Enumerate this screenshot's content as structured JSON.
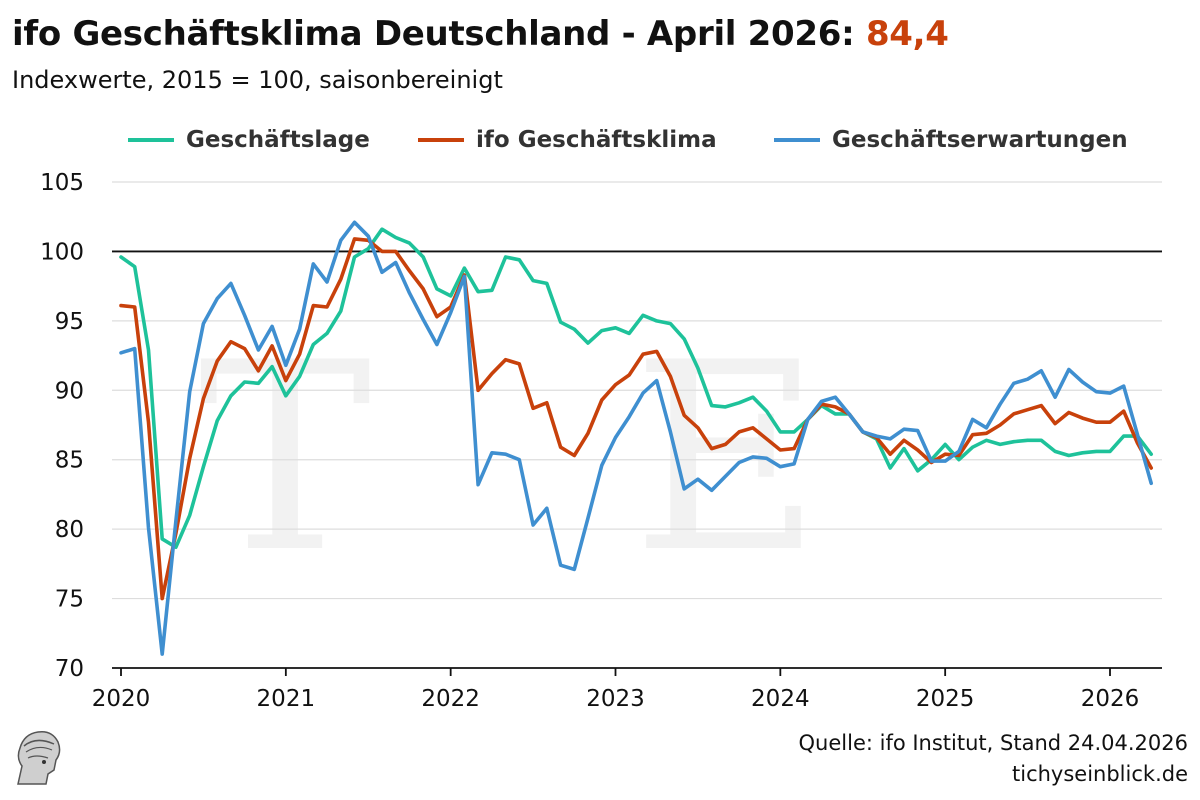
{
  "header": {
    "title": "ifo Geschäftsklima Deutschland - April 2026: ",
    "title_value": "84,4",
    "subtitle": "Indexwerte, 2015 = 100, saisonbereinigt"
  },
  "footer": {
    "source": "Quelle: ifo Institut, Stand 24.04.2026",
    "site": "tichyseinblick.de"
  },
  "watermark": "TE",
  "colors": {
    "accent": "#c8410b",
    "lage": "#1ec29a",
    "klima": "#c8410b",
    "erwartungen": "#3f8fd0",
    "grid": "#dddddd",
    "reference": "#111111"
  },
  "chart_data": {
    "type": "line",
    "title": "ifo Geschäftsklima Deutschland - April 2026: 84,4",
    "subtitle": "Indexwerte, 2015 = 100, saisonbereinigt",
    "xlabel": "",
    "ylabel": "",
    "x_start": "2020-01",
    "x_end": "2026-04",
    "x_ticks": [
      "2020",
      "2021",
      "2022",
      "2023",
      "2024",
      "2025",
      "2026"
    ],
    "ylim": [
      70,
      105
    ],
    "y_ticks": [
      70,
      75,
      80,
      85,
      90,
      95,
      100,
      105
    ],
    "reference_line": 100,
    "grid": true,
    "legend_position": "top",
    "series": [
      {
        "name": "Geschäftslage",
        "color": "#1ec29a",
        "values": [
          99.6,
          98.9,
          92.9,
          79.3,
          78.7,
          81.0,
          84.5,
          87.8,
          89.6,
          90.6,
          90.5,
          91.7,
          89.6,
          91.0,
          93.3,
          94.1,
          95.7,
          99.6,
          100.2,
          101.6,
          101.0,
          100.6,
          99.6,
          97.3,
          96.8,
          98.8,
          97.1,
          97.2,
          99.6,
          99.4,
          97.9,
          97.7,
          94.9,
          94.4,
          93.4,
          94.3,
          94.5,
          94.1,
          95.4,
          95.0,
          94.8,
          93.7,
          91.6,
          88.9,
          88.8,
          89.1,
          89.5,
          88.5,
          87.0,
          87.0,
          87.9,
          88.9,
          88.3,
          88.3,
          87.0,
          86.5,
          84.4,
          85.8,
          84.2,
          85.0,
          86.1,
          85.0,
          85.9,
          86.4,
          86.1,
          86.3,
          86.4,
          86.4,
          85.6,
          85.3,
          85.5,
          85.6,
          85.6,
          86.7,
          86.7,
          85.4
        ]
      },
      {
        "name": "ifo Geschäftsklima",
        "color": "#c8410b",
        "values": [
          96.1,
          96.0,
          87.7,
          75.0,
          79.7,
          85.1,
          89.4,
          92.1,
          93.5,
          93.0,
          91.4,
          93.2,
          90.7,
          92.6,
          96.1,
          96.0,
          98.0,
          100.9,
          100.8,
          100.0,
          100.0,
          98.6,
          97.3,
          95.3,
          96.0,
          98.3,
          90.0,
          91.2,
          92.2,
          91.9,
          88.7,
          89.1,
          85.9,
          85.3,
          86.9,
          89.3,
          90.4,
          91.1,
          92.6,
          92.8,
          91.0,
          88.2,
          87.3,
          85.8,
          86.1,
          87.0,
          87.3,
          86.5,
          85.7,
          85.8,
          87.9,
          89.0,
          88.8,
          88.3,
          87.0,
          86.6,
          85.4,
          86.4,
          85.7,
          84.8,
          85.4,
          85.3,
          86.8,
          86.9,
          87.5,
          88.3,
          88.6,
          88.9,
          87.6,
          88.4,
          88.0,
          87.7,
          87.7,
          88.5,
          86.2,
          84.4
        ]
      },
      {
        "name": "Geschäftserwartungen",
        "color": "#3f8fd0",
        "values": [
          92.7,
          93.0,
          80.1,
          71.0,
          80.6,
          89.9,
          94.8,
          96.6,
          97.7,
          95.4,
          92.9,
          94.6,
          91.8,
          94.4,
          99.1,
          97.8,
          100.8,
          102.1,
          101.1,
          98.5,
          99.2,
          97.0,
          95.1,
          93.3,
          95.6,
          98.2,
          83.2,
          85.5,
          85.4,
          85.0,
          80.3,
          81.5,
          77.4,
          77.1,
          80.8,
          84.6,
          86.6,
          88.1,
          89.8,
          90.7,
          87.0,
          82.9,
          83.6,
          82.8,
          83.8,
          84.8,
          85.2,
          85.1,
          84.5,
          84.7,
          87.9,
          89.2,
          89.5,
          88.3,
          87.0,
          86.7,
          86.5,
          87.2,
          87.1,
          84.9,
          84.9,
          85.6,
          87.9,
          87.3,
          89.0,
          90.5,
          90.8,
          91.4,
          89.5,
          91.5,
          90.6,
          89.9,
          89.8,
          90.3,
          86.8,
          83.3
        ]
      }
    ]
  }
}
